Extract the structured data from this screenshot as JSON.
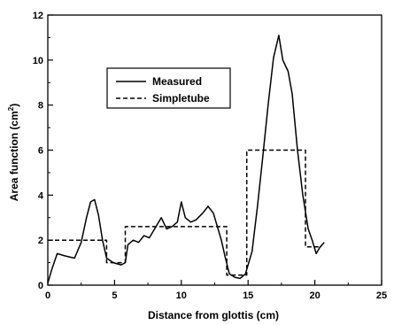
{
  "chart_data": {
    "type": "line",
    "xlabel": "Distance from glottis (cm)",
    "ylabel_main": "Area function (cm",
    "ylabel_sup": "2",
    "ylabel_end": ")",
    "xlim": [
      0,
      25
    ],
    "ylim": [
      0,
      12
    ],
    "x_ticks": [
      0,
      5,
      10,
      15,
      20,
      25
    ],
    "y_ticks": [
      0,
      2,
      4,
      6,
      8,
      10,
      12
    ],
    "grid": false,
    "legend_position": "upper-left-center",
    "series": [
      {
        "name": "Measured",
        "style": "solid",
        "color": "#000000",
        "points": [
          [
            0.0,
            0.1
          ],
          [
            0.3,
            0.7
          ],
          [
            0.7,
            1.4
          ],
          [
            1.3,
            1.3
          ],
          [
            2.0,
            1.2
          ],
          [
            2.5,
            1.9
          ],
          [
            2.9,
            3.0
          ],
          [
            3.2,
            3.7
          ],
          [
            3.5,
            3.8
          ],
          [
            3.8,
            3.1
          ],
          [
            4.1,
            2.0
          ],
          [
            4.4,
            1.2
          ],
          [
            4.9,
            1.0
          ],
          [
            5.5,
            0.9
          ],
          [
            5.8,
            1.0
          ],
          [
            6.0,
            1.8
          ],
          [
            6.4,
            2.0
          ],
          [
            6.8,
            1.9
          ],
          [
            7.2,
            2.2
          ],
          [
            7.6,
            2.1
          ],
          [
            8.0,
            2.5
          ],
          [
            8.5,
            3.0
          ],
          [
            8.9,
            2.5
          ],
          [
            9.3,
            2.6
          ],
          [
            9.7,
            2.8
          ],
          [
            10.0,
            3.7
          ],
          [
            10.3,
            3.0
          ],
          [
            10.7,
            2.8
          ],
          [
            11.1,
            2.9
          ],
          [
            11.6,
            3.2
          ],
          [
            12.0,
            3.5
          ],
          [
            12.4,
            3.2
          ],
          [
            12.7,
            2.6
          ],
          [
            13.0,
            2.0
          ],
          [
            13.3,
            1.2
          ],
          [
            13.6,
            0.5
          ],
          [
            14.0,
            0.35
          ],
          [
            14.4,
            0.3
          ],
          [
            14.8,
            0.5
          ],
          [
            15.3,
            1.5
          ],
          [
            15.7,
            3.5
          ],
          [
            16.1,
            5.7
          ],
          [
            16.5,
            8.0
          ],
          [
            16.9,
            10.1
          ],
          [
            17.3,
            11.1
          ],
          [
            17.6,
            10.0
          ],
          [
            18.0,
            9.5
          ],
          [
            18.3,
            8.5
          ],
          [
            18.7,
            6.0
          ],
          [
            19.1,
            4.0
          ],
          [
            19.5,
            2.5
          ],
          [
            19.8,
            2.0
          ],
          [
            20.1,
            1.4
          ],
          [
            20.4,
            1.7
          ],
          [
            20.7,
            1.9
          ]
        ]
      },
      {
        "name": "Simpletube",
        "style": "dashed",
        "color": "#000000",
        "points": [
          [
            0.0,
            2.0
          ],
          [
            4.4,
            2.0
          ],
          [
            4.4,
            1.0
          ],
          [
            5.8,
            1.0
          ],
          [
            5.8,
            2.6
          ],
          [
            13.4,
            2.6
          ],
          [
            13.4,
            0.45
          ],
          [
            14.9,
            0.45
          ],
          [
            14.9,
            6.0
          ],
          [
            19.3,
            6.0
          ],
          [
            19.3,
            1.7
          ],
          [
            20.5,
            1.7
          ]
        ]
      }
    ]
  }
}
